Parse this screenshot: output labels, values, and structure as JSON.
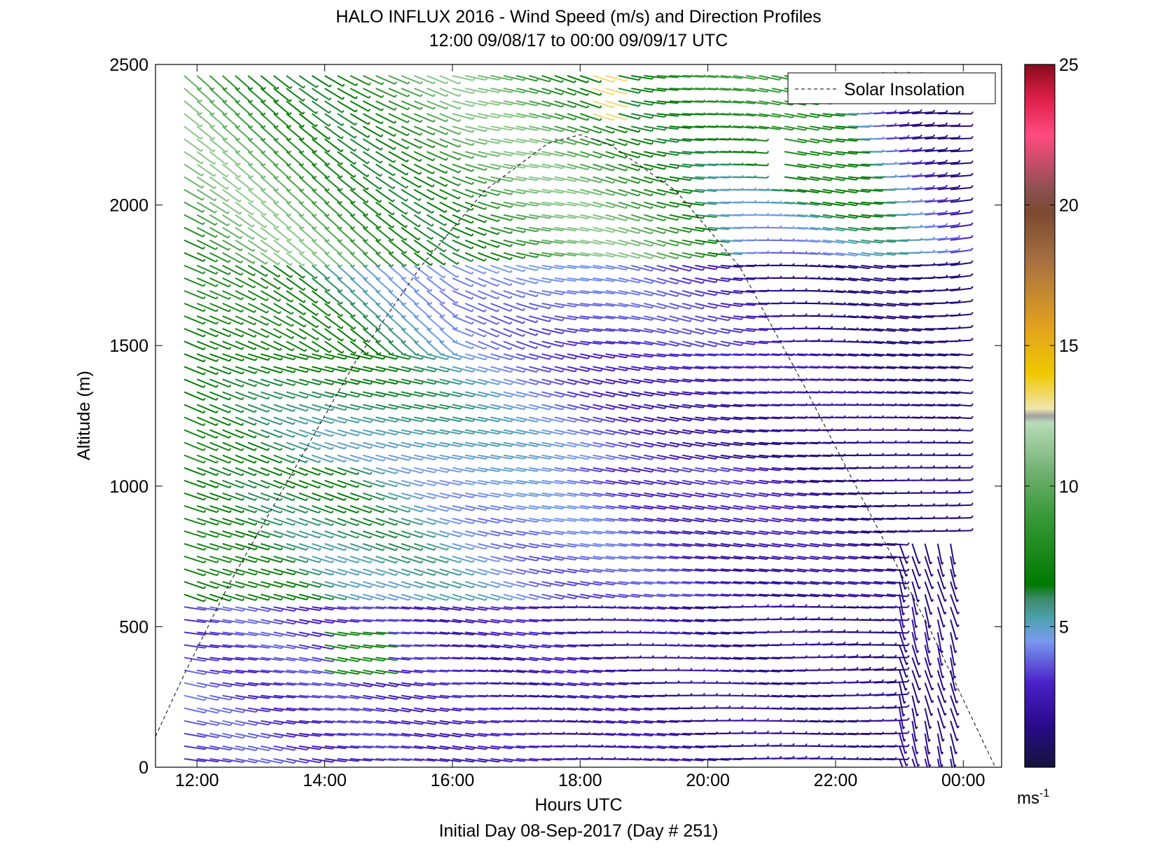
{
  "chart_data": {
    "type": "wind-barb-profile",
    "title": "HALO INFLUX 2016 - Wind Speed (m/s) and Direction Profiles",
    "subtitle": "12:00 09/08/17 to 00:00 09/09/17  UTC",
    "xlabel": "Hours UTC",
    "footer": "Initial Day 08-Sep-2017 (Day # 251)",
    "ylabel": "Altitude (m)",
    "xlim": [
      11.35,
      24.6
    ],
    "ylim": [
      0,
      2500
    ],
    "x_ticks": [
      12,
      14,
      16,
      18,
      20,
      22,
      24
    ],
    "x_tick_labels": [
      "12:00",
      "14:00",
      "16:00",
      "18:00",
      "20:00",
      "22:00",
      "00:00"
    ],
    "y_ticks": [
      0,
      500,
      1000,
      1500,
      2000,
      2500
    ],
    "y_tick_labels": [
      "0",
      "500",
      "1000",
      "1500",
      "2000",
      "2500"
    ],
    "legend": {
      "entries": [
        "Solar Insolation"
      ],
      "position": "top-right"
    },
    "colorbar": {
      "range": [
        0,
        25
      ],
      "ticks": [
        5,
        10,
        15,
        20,
        25
      ],
      "tick_labels": [
        "5",
        "10",
        "15",
        "20",
        "25"
      ],
      "unit_base": "ms",
      "unit_exp": "-1"
    },
    "profile_hours": [
      11.8,
      12.0,
      12.2,
      12.4,
      12.6,
      12.8,
      13.0,
      13.2,
      13.4,
      13.6,
      13.8,
      14.0,
      14.2,
      14.4,
      14.6,
      14.8,
      15.0,
      15.2,
      15.4,
      15.6,
      15.8,
      16.0,
      16.2,
      16.4,
      16.6,
      16.8,
      17.0,
      17.2,
      17.4,
      17.6,
      17.8,
      18.0,
      18.2,
      18.4,
      18.6,
      18.8,
      19.0,
      19.2,
      19.4,
      19.6,
      19.8,
      20.0,
      20.2,
      20.4,
      20.6,
      20.8,
      21.0,
      21.2,
      21.4,
      21.6,
      21.8,
      22.0,
      22.2,
      22.4,
      22.6,
      22.8,
      23.0,
      23.2,
      23.4,
      23.6,
      23.8
    ],
    "solar_insolation": {
      "x": [
        11.35,
        11.8,
        12.5,
        13.5,
        14.5,
        15.5,
        16.5,
        17.5,
        18.0,
        18.5,
        19.5,
        20.5,
        21.5,
        22.5,
        23.5,
        24.5
      ],
      "y": [
        110,
        330,
        650,
        1050,
        1450,
        1780,
        2050,
        2220,
        2250,
        2210,
        2050,
        1780,
        1360,
        920,
        480,
        0
      ]
    }
  }
}
